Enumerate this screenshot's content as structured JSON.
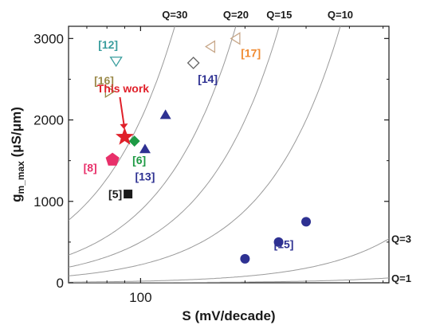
{
  "chart_data": {
    "type": "scatter",
    "title": "",
    "xlabel": "S (mV/decade)",
    "ylabel_main": "g",
    "ylabel_sub": "m_max",
    "ylabel_units": " (μS/μm)",
    "xscale": "log",
    "xlim": [
      62,
      520
    ],
    "ylim": [
      0,
      3150
    ],
    "x_ticks": [
      {
        "value": 100,
        "label": "100"
      }
    ],
    "y_ticks": [
      {
        "value": 0,
        "label": "0"
      },
      {
        "value": 1000,
        "label": "1000"
      },
      {
        "value": 2000,
        "label": "2000"
      },
      {
        "value": 3000,
        "label": "3000"
      }
    ],
    "grid": false,
    "curves": [
      {
        "label": "Q=30",
        "q": 30
      },
      {
        "label": "Q=20",
        "q": 20
      },
      {
        "label": "Q=15",
        "q": 15
      },
      {
        "label": "Q=10",
        "q": 10
      },
      {
        "label": "Q=3",
        "q": 3
      },
      {
        "label": "Q=1",
        "q": 1
      }
    ],
    "points": [
      {
        "ref": "[12]",
        "x": 85,
        "y": 2730,
        "marker": "triangle-down-open",
        "color": "#3a9e9e"
      },
      {
        "ref": "[16]",
        "x": 81,
        "y": 2350,
        "marker": "triangle-right-open",
        "color": "#9b8a4a"
      },
      {
        "ref": "[17]",
        "x": 189,
        "y": 3000,
        "marker": "triangle-left-open",
        "color": "#c8a88a"
      },
      {
        "ref": "",
        "x": 160,
        "y": 2900,
        "marker": "triangle-left-open",
        "color": "#c8a88a"
      },
      {
        "ref": "[14]",
        "x": 142,
        "y": 2700,
        "marker": "diamond-open",
        "color": "#666666"
      },
      {
        "ref": "",
        "x": 118,
        "y": 2060,
        "marker": "triangle-up",
        "color": "#2e3192"
      },
      {
        "ref": "[13]",
        "x": 103,
        "y": 1640,
        "marker": "triangle-up",
        "color": "#2e3192"
      },
      {
        "ref": "[6]",
        "x": 96,
        "y": 1740,
        "marker": "diamond",
        "color": "#1e9a44"
      },
      {
        "ref": "[8]",
        "x": 83,
        "y": 1510,
        "marker": "pentagon",
        "color": "#e8306a"
      },
      {
        "ref": "[5]",
        "x": 92,
        "y": 1090,
        "marker": "square",
        "color": "#1a1a1a"
      },
      {
        "ref": "",
        "x": 200,
        "y": 295,
        "marker": "circle",
        "color": "#2e3192"
      },
      {
        "ref": "",
        "x": 250,
        "y": 500,
        "marker": "circle",
        "color": "#2e3192"
      },
      {
        "ref": "[15]",
        "x": 300,
        "y": 750,
        "marker": "circle",
        "color": "#2e3192"
      }
    ],
    "this_work": {
      "label": "This work",
      "x": 90,
      "y": 1790,
      "marker": "star",
      "color": "#e0202a"
    }
  }
}
